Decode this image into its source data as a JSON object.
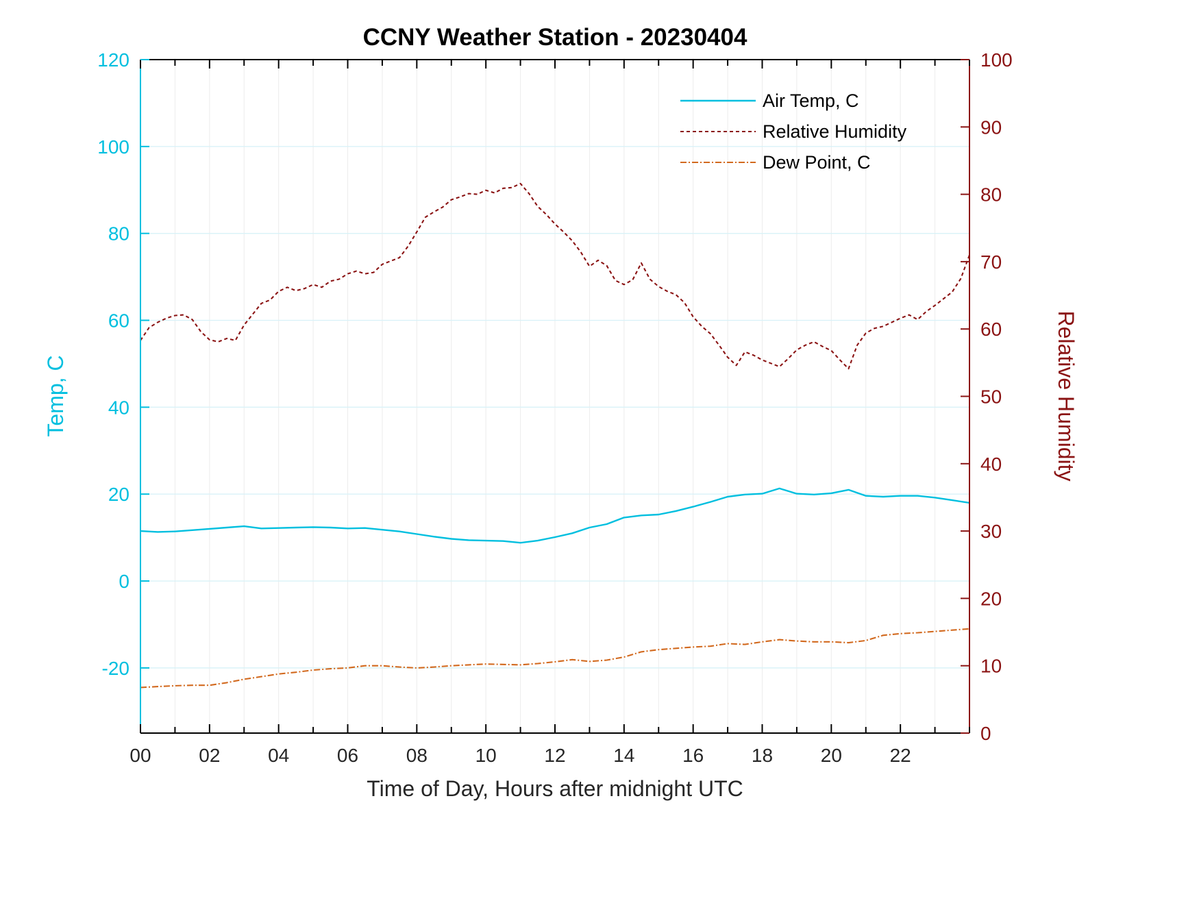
{
  "page": {
    "background": "#ffffff"
  },
  "chart_data": {
    "type": "line",
    "title": "CCNY Weather Station - 20230404",
    "xlabel": "Time of Day, Hours after midnight UTC",
    "ylabel_left": "Temp, C",
    "ylabel_right": "Relative Humidity",
    "xlim": [
      0,
      24
    ],
    "ylim_left": [
      -35,
      120
    ],
    "ylim_right": [
      0,
      100
    ],
    "x_minor_step": 1,
    "x_ticks": [
      0,
      2,
      4,
      6,
      8,
      10,
      12,
      14,
      16,
      18,
      20,
      22
    ],
    "x_tick_labels": [
      "00",
      "02",
      "04",
      "06",
      "08",
      "10",
      "12",
      "14",
      "16",
      "18",
      "20",
      "22"
    ],
    "left_ticks": [
      -20,
      0,
      20,
      40,
      60,
      80,
      100,
      120
    ],
    "left_tick_labels": [
      "-20",
      "0",
      "20",
      "40",
      "60",
      "80",
      "100",
      "120"
    ],
    "right_ticks": [
      0,
      10,
      20,
      30,
      40,
      50,
      60,
      70,
      80,
      90,
      100
    ],
    "right_tick_labels": [
      "0",
      "10",
      "20",
      "30",
      "40",
      "50",
      "60",
      "70",
      "80",
      "90",
      "100"
    ],
    "grid": true,
    "legend_position": "top-right",
    "colors": {
      "left_axis": "#00bfdf",
      "right_axis": "#8b1414",
      "air_temp": "#00bfdf",
      "relative_humidity": "#8b1414",
      "dew_point": "#d2691e",
      "grid_horizontal": "#d9f2f8",
      "grid_vertical": "#ececec",
      "box": "#000000",
      "tick_text_x": "#262626"
    },
    "series": [
      {
        "id": "air-temp",
        "name": "Air Temp, C",
        "axis": "left",
        "color": "#00bfdf",
        "style": "solid",
        "width": 2.4,
        "x_start": 0,
        "x_step": 0.5,
        "values": [
          11.5,
          11.3,
          11.4,
          11.7,
          12.0,
          12.3,
          12.6,
          12.1,
          12.2,
          12.3,
          12.4,
          12.3,
          12.1,
          12.2,
          11.8,
          11.4,
          10.8,
          10.2,
          9.7,
          9.4,
          9.3,
          9.2,
          8.8,
          9.3,
          10.1,
          11.0,
          12.3,
          13.1,
          14.6,
          15.1,
          15.3,
          16.1,
          17.1,
          18.2,
          19.4,
          19.9,
          20.1,
          21.3,
          20.1,
          19.9,
          20.2,
          21.0,
          19.6,
          19.4,
          19.6,
          19.6,
          19.2,
          18.6,
          18.0
        ]
      },
      {
        "id": "relative-humidity",
        "name": "Relative Humidity",
        "axis": "right",
        "color": "#8b1414",
        "style": "dashed",
        "width": 2.1,
        "x_start": 0,
        "x_step": 0.25,
        "values": [
          58.3,
          60.2,
          61.0,
          61.6,
          62.0,
          62.1,
          61.4,
          59.6,
          58.4,
          58.1,
          58.6,
          58.3,
          60.6,
          62.2,
          63.8,
          64.3,
          65.6,
          66.2,
          65.7,
          66.0,
          66.6,
          66.2,
          67.1,
          67.4,
          68.2,
          68.6,
          68.2,
          68.4,
          69.6,
          70.1,
          70.6,
          72.3,
          74.4,
          76.6,
          77.4,
          78.1,
          79.2,
          79.6,
          80.1,
          80.0,
          80.6,
          80.2,
          80.9,
          81.0,
          81.6,
          80.1,
          78.2,
          77.0,
          75.6,
          74.4,
          73.1,
          71.4,
          69.3,
          70.2,
          69.4,
          67.2,
          66.6,
          67.3,
          69.8,
          67.4,
          66.3,
          65.6,
          65.1,
          63.9,
          61.8,
          60.4,
          59.3,
          57.6,
          55.8,
          54.6,
          56.6,
          56.1,
          55.4,
          54.9,
          54.4,
          55.6,
          56.9,
          57.6,
          58.1,
          57.4,
          56.8,
          55.4,
          54.1,
          57.6,
          59.4,
          60.1,
          60.4,
          61.0,
          61.6,
          62.1,
          61.4,
          62.6,
          63.5,
          64.5,
          65.5,
          67.5,
          71.0
        ]
      },
      {
        "id": "dew-point",
        "name": "Dew Point, C",
        "axis": "left",
        "color": "#d2691e",
        "style": "dashdot",
        "width": 2.1,
        "x_start": 0,
        "x_step": 0.5,
        "values": [
          -24.5,
          -24.3,
          -24.1,
          -24.0,
          -24.0,
          -23.4,
          -22.6,
          -22.0,
          -21.4,
          -21.0,
          -20.5,
          -20.2,
          -20.0,
          -19.5,
          -19.5,
          -19.8,
          -20.0,
          -19.8,
          -19.5,
          -19.3,
          -19.1,
          -19.2,
          -19.3,
          -19.0,
          -18.6,
          -18.1,
          -18.5,
          -18.2,
          -17.5,
          -16.3,
          -15.8,
          -15.5,
          -15.2,
          -15.0,
          -14.4,
          -14.6,
          -14.0,
          -13.5,
          -13.8,
          -14.0,
          -14.0,
          -14.2,
          -13.7,
          -12.5,
          -12.1,
          -11.9,
          -11.6,
          -11.3,
          -11.0
        ]
      }
    ]
  }
}
